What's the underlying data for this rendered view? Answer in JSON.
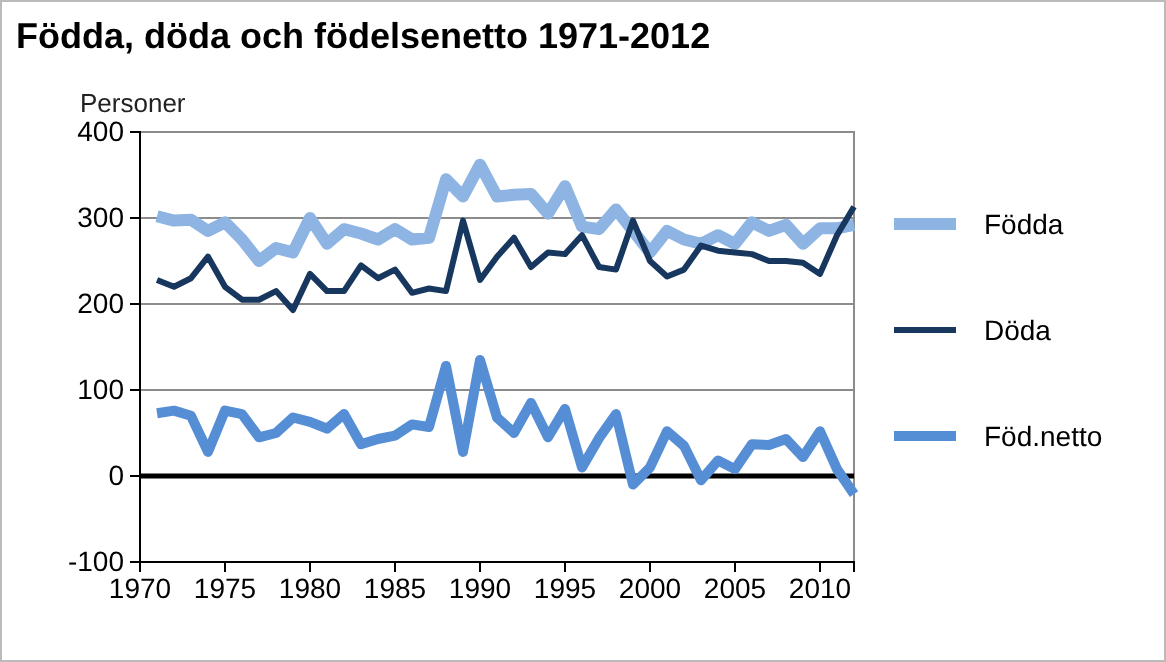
{
  "chart_data": {
    "type": "line",
    "title": "Födda, döda och födelsenetto 1971-2012",
    "ylabel": "Personer",
    "x": [
      1971,
      1972,
      1973,
      1974,
      1975,
      1976,
      1977,
      1978,
      1979,
      1980,
      1981,
      1982,
      1983,
      1984,
      1985,
      1986,
      1987,
      1988,
      1989,
      1990,
      1991,
      1992,
      1993,
      1994,
      1995,
      1996,
      1997,
      1998,
      1999,
      2000,
      2001,
      2002,
      2003,
      2004,
      2005,
      2006,
      2007,
      2008,
      2009,
      2010,
      2011,
      2012
    ],
    "series": [
      {
        "name": "Födda",
        "color": "#8db4e2",
        "values": [
          302,
          297,
          298,
          285,
          295,
          275,
          250,
          265,
          260,
          300,
          270,
          287,
          282,
          275,
          287,
          275,
          277,
          345,
          325,
          362,
          325,
          327,
          328,
          305,
          337,
          290,
          287,
          310,
          285,
          260,
          285,
          275,
          270,
          280,
          270,
          295,
          285,
          292,
          270,
          288,
          288,
          292
        ]
      },
      {
        "name": "Döda",
        "color": "#17375e",
        "values": [
          228,
          220,
          230,
          255,
          220,
          205,
          205,
          215,
          193,
          235,
          215,
          215,
          245,
          230,
          240,
          213,
          218,
          215,
          297,
          228,
          255,
          277,
          243,
          260,
          258,
          280,
          243,
          240,
          297,
          250,
          232,
          240,
          268,
          262,
          260,
          258,
          250,
          250,
          248,
          235,
          280,
          313
        ]
      },
      {
        "name": "Föd.netto",
        "color": "#558ed5",
        "values": [
          73,
          76,
          70,
          28,
          76,
          72,
          45,
          50,
          68,
          63,
          55,
          72,
          37,
          43,
          47,
          60,
          57,
          128,
          28,
          135,
          68,
          50,
          85,
          45,
          78,
          10,
          44,
          72,
          -10,
          10,
          52,
          35,
          -5,
          18,
          8,
          37,
          36,
          43,
          22,
          52,
          8,
          -21
        ]
      }
    ],
    "xlim": [
      1970,
      2012
    ],
    "xticks": [
      1970,
      1975,
      1980,
      1985,
      1990,
      1995,
      2000,
      2005,
      2010
    ],
    "ylim": [
      -100,
      400
    ],
    "yticks": [
      -100,
      0,
      100,
      200,
      300,
      400
    ],
    "ref_lines": [
      {
        "axis": "y",
        "value": 0,
        "color": "#000000"
      }
    ],
    "grid": "y",
    "legend": "right"
  }
}
